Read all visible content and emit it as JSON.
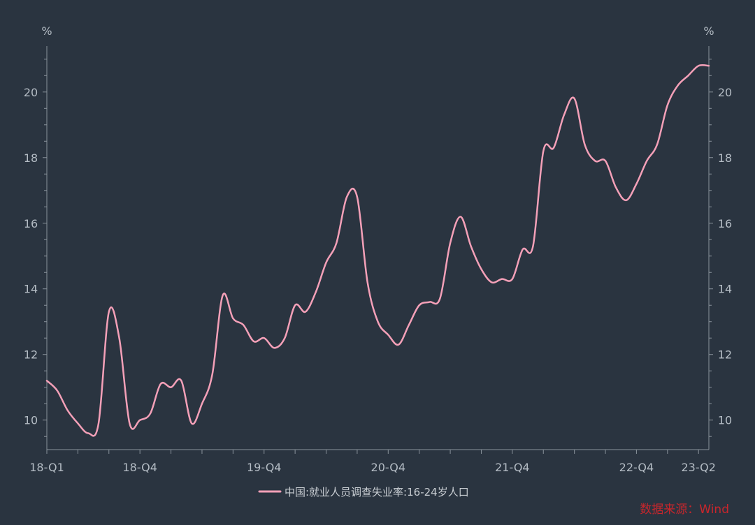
{
  "chart_data": {
    "type": "line",
    "y_unit_left": "%",
    "y_unit_right": "%",
    "ylim": [
      9.1,
      21.4
    ],
    "y_ticks": [
      10,
      12,
      14,
      16,
      18,
      20
    ],
    "y_tick_labels": [
      "10",
      "12",
      "14",
      "16",
      "18",
      "20"
    ],
    "x_tick_labels": [
      "18-Q1",
      "18-Q4",
      "19-Q4",
      "20-Q4",
      "21-Q4",
      "22-Q4",
      "23-Q2"
    ],
    "x_tick_months": [
      "2018-01",
      "2018-10",
      "2019-10",
      "2020-10",
      "2021-10",
      "2022-10",
      "2023-04"
    ],
    "x_range": [
      "2018-01",
      "2023-05"
    ],
    "grid": false,
    "legend_position": "bottom",
    "series": [
      {
        "name": "中国:就业人员调查失业率:16-24岁人口",
        "color": "#f4a0b8",
        "x": [
          "2018-01",
          "2018-02",
          "2018-03",
          "2018-04",
          "2018-05",
          "2018-06",
          "2018-07",
          "2018-08",
          "2018-09",
          "2018-10",
          "2018-11",
          "2018-12",
          "2019-01",
          "2019-02",
          "2019-03",
          "2019-04",
          "2019-05",
          "2019-06",
          "2019-07",
          "2019-08",
          "2019-09",
          "2019-10",
          "2019-11",
          "2019-12",
          "2020-01",
          "2020-02",
          "2020-03",
          "2020-04",
          "2020-05",
          "2020-06",
          "2020-07",
          "2020-08",
          "2020-09",
          "2020-10",
          "2020-11",
          "2020-12",
          "2021-01",
          "2021-02",
          "2021-03",
          "2021-04",
          "2021-05",
          "2021-06",
          "2021-07",
          "2021-08",
          "2021-09",
          "2021-10",
          "2021-11",
          "2021-12",
          "2022-01",
          "2022-02",
          "2022-03",
          "2022-04",
          "2022-05",
          "2022-06",
          "2022-07",
          "2022-08",
          "2022-09",
          "2022-10",
          "2022-11",
          "2022-12",
          "2023-01",
          "2023-02",
          "2023-03",
          "2023-04",
          "2023-05"
        ],
        "values": [
          11.2,
          10.9,
          10.3,
          9.9,
          9.6,
          9.9,
          13.3,
          12.5,
          9.9,
          10.0,
          10.2,
          11.1,
          11.0,
          11.2,
          9.9,
          10.5,
          11.4,
          13.8,
          13.1,
          12.9,
          12.4,
          12.5,
          12.2,
          12.5,
          13.5,
          13.3,
          13.9,
          14.8,
          15.4,
          16.8,
          16.8,
          14.2,
          13.0,
          12.6,
          12.3,
          12.9,
          13.5,
          13.6,
          13.7,
          15.4,
          16.2,
          15.3,
          14.6,
          14.2,
          14.3,
          14.3,
          15.2,
          15.3,
          18.2,
          18.3,
          19.3,
          19.8,
          18.4,
          17.9,
          17.9,
          17.1,
          16.7,
          17.2,
          17.9,
          18.4,
          19.6,
          20.2,
          20.5,
          20.8,
          20.8
        ]
      }
    ]
  },
  "legend": {
    "label": "中国:就业人员调查失业率:16-24岁人口"
  },
  "source": {
    "text": "数据来源：Wind"
  }
}
